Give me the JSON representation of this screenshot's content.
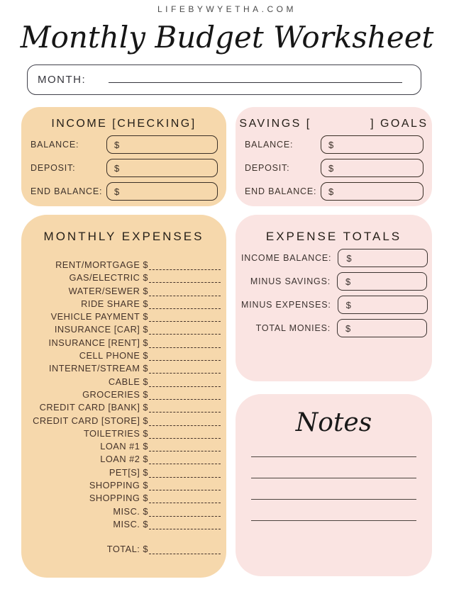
{
  "header": {
    "site": "LIFEBYWYETHA.COM",
    "title": "Monthly Budget Worksheet"
  },
  "month": {
    "label": "MONTH:",
    "value": ""
  },
  "income_box": {
    "title": "INCOME [CHECKING]",
    "currency": "$",
    "fields": [
      {
        "label": "BALANCE:",
        "value": ""
      },
      {
        "label": "DEPOSIT:",
        "value": ""
      },
      {
        "label": "END BALANCE:",
        "value": ""
      }
    ]
  },
  "savings_box": {
    "title": "SAVINGS [            ] GOALS",
    "currency": "$",
    "fields": [
      {
        "label": "BALANCE:",
        "value": ""
      },
      {
        "label": "DEPOSIT:",
        "value": ""
      },
      {
        "label": "END BALANCE:",
        "value": ""
      }
    ]
  },
  "expenses_box": {
    "title": "MONTHLY EXPENSES",
    "currency": "$",
    "items": [
      "RENT/MORTGAGE",
      "GAS/ELECTRIC",
      "WATER/SEWER",
      "RIDE SHARE",
      "VEHICLE PAYMENT",
      "INSURANCE [CAR]",
      "INSURANCE [RENT]",
      "CELL PHONE",
      "INTERNET/STREAM",
      "CABLE",
      "GROCERIES",
      "CREDIT CARD [BANK]",
      "CREDIT CARD [STORE]",
      "TOILETRIES",
      "LOAN #1",
      "LOAN #2",
      "PET[S]",
      "SHOPPING",
      "SHOPPING",
      "MISC.",
      "MISC."
    ],
    "total_label": "TOTAL:"
  },
  "totals_box": {
    "title": "EXPENSE TOTALS",
    "currency": "$",
    "fields": [
      {
        "label": "INCOME BALANCE:",
        "value": ""
      },
      {
        "label": "MINUS SAVINGS:",
        "value": ""
      },
      {
        "label": "MINUS EXPENSES:",
        "value": ""
      },
      {
        "label": "TOTAL MONIES:",
        "value": ""
      }
    ]
  },
  "notes_box": {
    "title": "Notes",
    "ruled_lines": 4
  },
  "colors": {
    "orange_panel": "#f6d8ac",
    "pink_panel": "#fae4e2",
    "ink": "#45332a",
    "heading": "#262019"
  }
}
